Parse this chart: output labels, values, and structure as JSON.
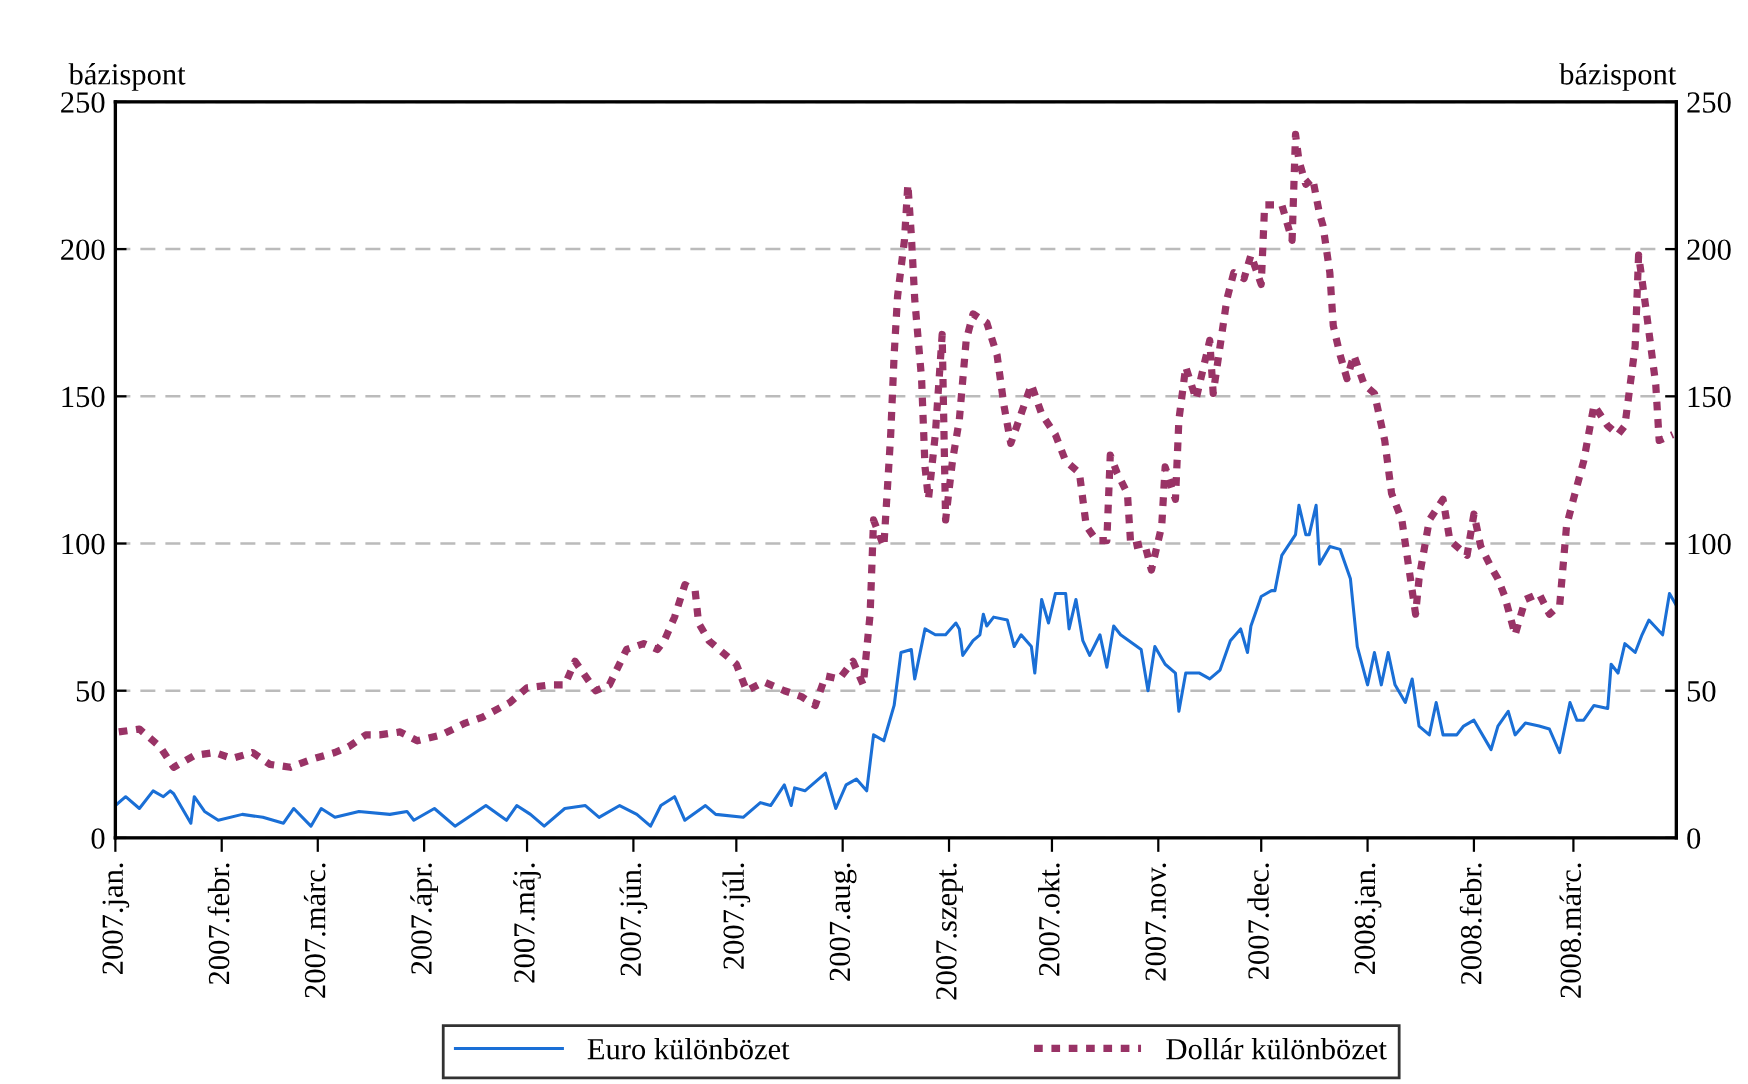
{
  "chart_data": {
    "type": "line",
    "ylabel": "bázispont",
    "y2label": "bázispont",
    "xlim": [
      "2007-01-01",
      "2008-03-31"
    ],
    "xticks": [
      {
        "value": "2007-01-01",
        "label": "2007.jan."
      },
      {
        "value": "2007-02-01",
        "label": "2007.febr."
      },
      {
        "value": "2007-03-01",
        "label": "2007.márc."
      },
      {
        "value": "2007-04-01",
        "label": "2007.ápr."
      },
      {
        "value": "2007-05-01",
        "label": "2007.máj."
      },
      {
        "value": "2007-06-01",
        "label": "2007.jún."
      },
      {
        "value": "2007-07-01",
        "label": "2007.júl."
      },
      {
        "value": "2007-08-01",
        "label": "2007.aug."
      },
      {
        "value": "2007-09-01",
        "label": "2007.szept."
      },
      {
        "value": "2007-10-01",
        "label": "2007.okt."
      },
      {
        "value": "2007-11-01",
        "label": "2007.nov."
      },
      {
        "value": "2007-12-01",
        "label": "2007.dec."
      },
      {
        "value": "2008-01-01",
        "label": "2008.jan."
      },
      {
        "value": "2008-02-01",
        "label": "2008.febr."
      },
      {
        "value": "2008-03-01",
        "label": "2008.márc."
      }
    ],
    "ylim": [
      0,
      250
    ],
    "yticks": [
      0,
      50,
      100,
      150,
      200,
      250
    ],
    "y2lim": [
      0,
      250
    ],
    "y2ticks": [
      0,
      50,
      100,
      150,
      200,
      250
    ],
    "grid": "y",
    "legend": "bottom",
    "marker": "none",
    "series": [
      {
        "name": "Euro különbözet",
        "color": "#1a6fd6",
        "line_style": "solid",
        "x": [
          "2007-01-01",
          "2007-01-04",
          "2007-01-08",
          "2007-01-12",
          "2007-01-15",
          "2007-01-17",
          "2007-01-18",
          "2007-01-23",
          "2007-01-24",
          "2007-01-27",
          "2007-01-31",
          "2007-02-07",
          "2007-02-13",
          "2007-02-19",
          "2007-02-22",
          "2007-02-27",
          "2007-03-02",
          "2007-03-06",
          "2007-03-13",
          "2007-03-22",
          "2007-03-27",
          "2007-03-29",
          "2007-04-04",
          "2007-04-10",
          "2007-04-19",
          "2007-04-25",
          "2007-04-28",
          "2007-05-02",
          "2007-05-06",
          "2007-05-12",
          "2007-05-18",
          "2007-05-22",
          "2007-05-28",
          "2007-06-02",
          "2007-06-06",
          "2007-06-09",
          "2007-06-13",
          "2007-06-16",
          "2007-06-22",
          "2007-06-25",
          "2007-07-03",
          "2007-07-08",
          "2007-07-11",
          "2007-07-15",
          "2007-07-17",
          "2007-07-18",
          "2007-07-21",
          "2007-07-27",
          "2007-07-30",
          "2007-08-02",
          "2007-08-05",
          "2007-08-08",
          "2007-08-10",
          "2007-08-13",
          "2007-08-16",
          "2007-08-18",
          "2007-08-21",
          "2007-08-22",
          "2007-08-25",
          "2007-08-28",
          "2007-08-31",
          "2007-09-03",
          "2007-09-04",
          "2007-09-05",
          "2007-09-08",
          "2007-09-10",
          "2007-09-11",
          "2007-09-12",
          "2007-09-14",
          "2007-09-18",
          "2007-09-20",
          "2007-09-22",
          "2007-09-25",
          "2007-09-26",
          "2007-09-28",
          "2007-09-30",
          "2007-10-02",
          "2007-10-05",
          "2007-10-06",
          "2007-10-08",
          "2007-10-10",
          "2007-10-12",
          "2007-10-15",
          "2007-10-17",
          "2007-10-19",
          "2007-10-21",
          "2007-10-27",
          "2007-10-29",
          "2007-10-31",
          "2007-11-03",
          "2007-11-06",
          "2007-11-07",
          "2007-11-09",
          "2007-11-13",
          "2007-11-16",
          "2007-11-19",
          "2007-11-22",
          "2007-11-25",
          "2007-11-27",
          "2007-11-28",
          "2007-12-01",
          "2007-12-04",
          "2007-12-05",
          "2007-12-07",
          "2007-12-11",
          "2007-12-12",
          "2007-12-14",
          "2007-12-15",
          "2007-12-17",
          "2007-12-18",
          "2007-12-21",
          "2007-12-24",
          "2007-12-27",
          "2007-12-29",
          "2008-01-01",
          "2008-01-03",
          "2008-01-05",
          "2008-01-07",
          "2008-01-09",
          "2008-01-12",
          "2008-01-14",
          "2008-01-16",
          "2008-01-19",
          "2008-01-21",
          "2008-01-23",
          "2008-01-27",
          "2008-01-29",
          "2008-02-01",
          "2008-02-06",
          "2008-02-08",
          "2008-02-11",
          "2008-02-13",
          "2008-02-16",
          "2008-02-20",
          "2008-02-23",
          "2008-02-26",
          "2008-02-29",
          "2008-03-02",
          "2008-03-04",
          "2008-03-07",
          "2008-03-11",
          "2008-03-12",
          "2008-03-14",
          "2008-03-16",
          "2008-03-19",
          "2008-03-21",
          "2008-03-23",
          "2008-03-27",
          "2008-03-29",
          "2008-03-31"
        ],
        "values": [
          11,
          14,
          10,
          16,
          14,
          16,
          15,
          5,
          14,
          9,
          6,
          8,
          7,
          5,
          10,
          4,
          10,
          7,
          9,
          8,
          9,
          6,
          10,
          4,
          11,
          6,
          11,
          8,
          4,
          10,
          11,
          7,
          11,
          8,
          4,
          11,
          14,
          6,
          11,
          8,
          7,
          12,
          11,
          18,
          11,
          17,
          16,
          22,
          10,
          18,
          20,
          16,
          35,
          33,
          45,
          63,
          64,
          54,
          71,
          69,
          69,
          73,
          71,
          62,
          67,
          69,
          76,
          72,
          75,
          74,
          65,
          69,
          65,
          56,
          81,
          73,
          83,
          83,
          71,
          81,
          67,
          62,
          69,
          58,
          72,
          69,
          64,
          50,
          65,
          59,
          56,
          43,
          56,
          56,
          54,
          57,
          67,
          71,
          63,
          72,
          82,
          84,
          84,
          96,
          103,
          113,
          103,
          103,
          113,
          93,
          99,
          98,
          88,
          65,
          52,
          63,
          52,
          63,
          52,
          46,
          54,
          38,
          35,
          46,
          35,
          35,
          38,
          40,
          30,
          38,
          43,
          35,
          39,
          38,
          37,
          29,
          46,
          40,
          40,
          45,
          44,
          59,
          56,
          66,
          63,
          69,
          74,
          69,
          83,
          79
        ]
      },
      {
        "name": "Dollár különbözet",
        "color": "#993366",
        "line_style": "dotted",
        "x": [
          "2007-01-02",
          "2007-01-08",
          "2007-01-14",
          "2007-01-18",
          "2007-01-24",
          "2007-01-30",
          "2007-02-04",
          "2007-02-10",
          "2007-02-15",
          "2007-02-21",
          "2007-02-28",
          "2007-03-06",
          "2007-03-10",
          "2007-03-15",
          "2007-03-19",
          "2007-03-25",
          "2007-03-30",
          "2007-04-06",
          "2007-04-13",
          "2007-04-18",
          "2007-04-26",
          "2007-05-01",
          "2007-05-08",
          "2007-05-12",
          "2007-05-15",
          "2007-05-21",
          "2007-05-25",
          "2007-05-30",
          "2007-06-04",
          "2007-06-08",
          "2007-06-10",
          "2007-06-13",
          "2007-06-16",
          "2007-06-19",
          "2007-06-20",
          "2007-06-23",
          "2007-06-27",
          "2007-07-01",
          "2007-07-04",
          "2007-07-09",
          "2007-07-15",
          "2007-07-20",
          "2007-07-24",
          "2007-07-27",
          "2007-07-31",
          "2007-08-04",
          "2007-08-07",
          "2007-08-09",
          "2007-08-10",
          "2007-08-13",
          "2007-08-15",
          "2007-08-16",
          "2007-08-17",
          "2007-08-19",
          "2007-08-20",
          "2007-08-21",
          "2007-08-22",
          "2007-08-24",
          "2007-08-25",
          "2007-08-26",
          "2007-08-28",
          "2007-08-30",
          "2007-08-31",
          "2007-09-02",
          "2007-09-04",
          "2007-09-06",
          "2007-09-08",
          "2007-09-12",
          "2007-09-15",
          "2007-09-17",
          "2007-09-19",
          "2007-09-22",
          "2007-09-25",
          "2007-09-28",
          "2007-10-02",
          "2007-10-05",
          "2007-10-09",
          "2007-10-11",
          "2007-10-14",
          "2007-10-17",
          "2007-10-18",
          "2007-10-20",
          "2007-10-23",
          "2007-10-24",
          "2007-10-28",
          "2007-10-30",
          "2007-11-02",
          "2007-11-03",
          "2007-11-06",
          "2007-11-07",
          "2007-11-09",
          "2007-11-12",
          "2007-11-16",
          "2007-11-17",
          "2007-11-21",
          "2007-11-23",
          "2007-11-26",
          "2007-11-28",
          "2007-12-01",
          "2007-12-02",
          "2007-12-07",
          "2007-12-10",
          "2007-12-11",
          "2007-12-12",
          "2007-12-14",
          "2007-12-16",
          "2007-12-18",
          "2007-12-19",
          "2007-12-21",
          "2007-12-22",
          "2007-12-24",
          "2007-12-26",
          "2007-12-28",
          "2007-12-31",
          "2008-01-03",
          "2008-01-06",
          "2008-01-08",
          "2008-01-11",
          "2008-01-13",
          "2008-01-15",
          "2008-01-16",
          "2008-01-19",
          "2008-01-23",
          "2008-01-25",
          "2008-01-30",
          "2008-02-01",
          "2008-02-03",
          "2008-02-06",
          "2008-02-08",
          "2008-02-10",
          "2008-02-13",
          "2008-02-16",
          "2008-02-20",
          "2008-02-23",
          "2008-02-26",
          "2008-02-28",
          "2008-03-01",
          "2008-03-04",
          "2008-03-07",
          "2008-03-11",
          "2008-03-14",
          "2008-03-16",
          "2008-03-19",
          "2008-03-20",
          "2008-03-22",
          "2008-03-25",
          "2008-03-26",
          "2008-03-30"
        ],
        "values": [
          36,
          37,
          31,
          24,
          28,
          29,
          27,
          29,
          25,
          24,
          27,
          29,
          31,
          35,
          35,
          36,
          33,
          35,
          39,
          41,
          46,
          51,
          52,
          52,
          60,
          50,
          52,
          64,
          66,
          64,
          67,
          75,
          86,
          84,
          73,
          67,
          63,
          59,
          50,
          53,
          50,
          48,
          45,
          55,
          54,
          60,
          52,
          76,
          108,
          99,
          137,
          164,
          184,
          203,
          222,
          205,
          183,
          156,
          126,
          115,
          137,
          171,
          108,
          128,
          142,
          169,
          178,
          175,
          164,
          147,
          134,
          144,
          154,
          144,
          137,
          128,
          124,
          106,
          101,
          101,
          130,
          124,
          117,
          99,
          100,
          91,
          106,
          126,
          115,
          142,
          160,
          149,
          169,
          151,
          183,
          192,
          190,
          198,
          188,
          215,
          215,
          203,
          239,
          230,
          222,
          224,
          212,
          208,
          192,
          174,
          164,
          156,
          164,
          154,
          151,
          135,
          117,
          108,
          92,
          76,
          88,
          108,
          115,
          101,
          96,
          110,
          99,
          92,
          88,
          82,
          69,
          81,
          83,
          76,
          79,
          106,
          115,
          128,
          147,
          140,
          137,
          140,
          167,
          198,
          181,
          154,
          135,
          137
        ]
      }
    ]
  }
}
